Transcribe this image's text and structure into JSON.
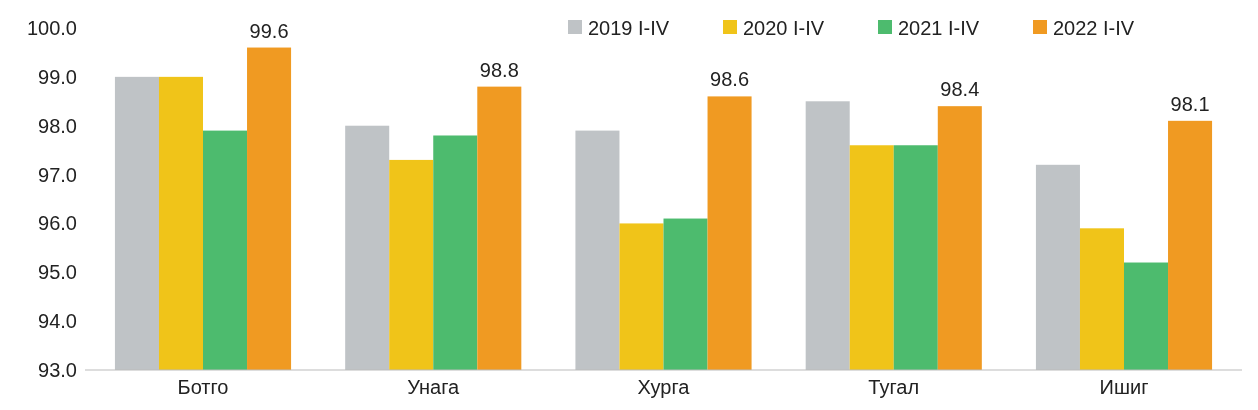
{
  "chart_data": {
    "type": "bar",
    "categories": [
      "Ботго",
      "Унага",
      "Хурга",
      "Тугал",
      "Ишиг"
    ],
    "series": [
      {
        "name": "2019 I-IV",
        "color": "#bfc3c6",
        "values": [
          99.0,
          98.0,
          97.9,
          98.5,
          97.2
        ]
      },
      {
        "name": "2020 I-IV",
        "color": "#f0c419",
        "values": [
          99.0,
          97.3,
          96.0,
          97.6,
          95.9
        ]
      },
      {
        "name": "2021 I-IV",
        "color": "#4dbb6e",
        "values": [
          97.9,
          97.8,
          96.1,
          97.6,
          95.2
        ]
      },
      {
        "name": "2022 I-IV",
        "color": "#f09a22",
        "values": [
          99.6,
          98.8,
          98.6,
          98.4,
          98.1
        ],
        "value_labels": [
          "99.6",
          "98.8",
          "98.6",
          "98.4",
          "98.1"
        ]
      }
    ],
    "ylim": [
      93,
      100
    ],
    "yticks": [
      {
        "value": 93,
        "label": "93.0"
      },
      {
        "value": 94,
        "label": "94.0"
      },
      {
        "value": 95,
        "label": "95.0"
      },
      {
        "value": 96,
        "label": "96.0"
      },
      {
        "value": 97,
        "label": "97.0"
      },
      {
        "value": 98,
        "label": "98.0"
      },
      {
        "value": 99,
        "label": "99.0"
      },
      {
        "value": 100,
        "label": "100.0"
      }
    ],
    "grid": false,
    "legend": "top right"
  }
}
